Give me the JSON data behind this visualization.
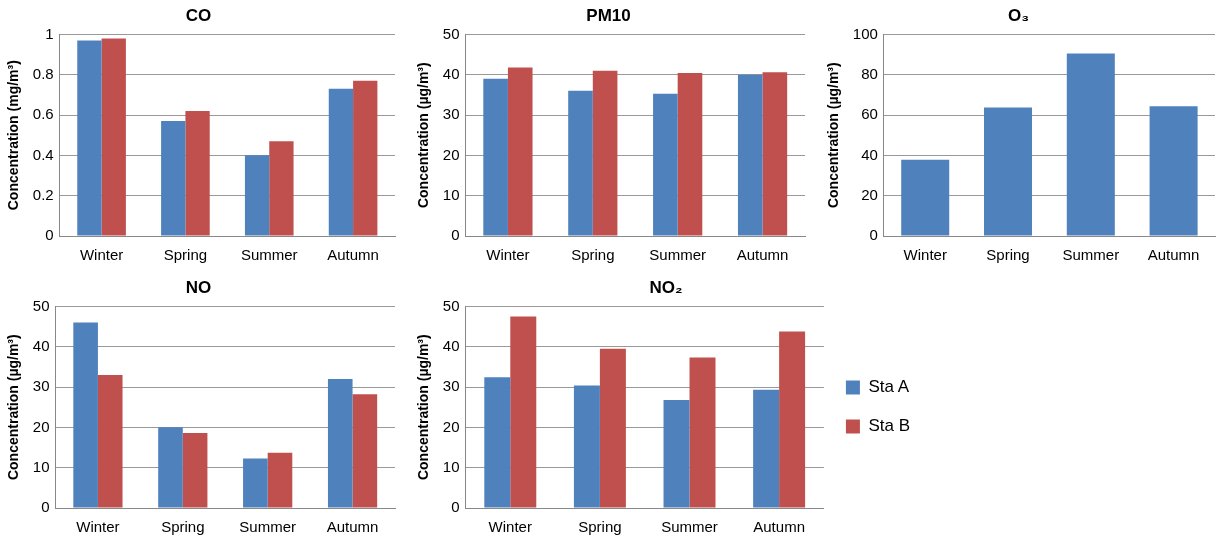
{
  "chart_data": [
    {
      "type": "bar",
      "title": "CO",
      "ylabel": "Concentration (mg/m³)",
      "categories": [
        "Winter",
        "Spring",
        "Summer",
        "Autumn"
      ],
      "series": [
        {
          "color": "#4f81bd",
          "values": [
            0.97,
            0.57,
            0.4,
            0.73
          ]
        },
        {
          "color": "#c0504d",
          "values": [
            0.98,
            0.62,
            0.47,
            0.77
          ]
        }
      ],
      "ylim": [
        0,
        1
      ],
      "yticks": [
        0,
        0.2,
        0.4,
        0.6,
        0.8,
        1
      ],
      "grid": "y",
      "legend": false
    },
    {
      "type": "bar",
      "title": "PM10",
      "ylabel": "Concentration (µg/m³)",
      "categories": [
        "Winter",
        "Spring",
        "Summer",
        "Autumn"
      ],
      "series": [
        {
          "color": "#4f81bd",
          "values": [
            39,
            36,
            35.3,
            40
          ]
        },
        {
          "color": "#c0504d",
          "values": [
            41.8,
            41,
            40.4,
            40.6
          ]
        }
      ],
      "ylim": [
        0,
        50
      ],
      "yticks": [
        0,
        10,
        20,
        30,
        40,
        50
      ],
      "grid": "y",
      "legend": false
    },
    {
      "type": "bar",
      "title": "O₃",
      "ylabel": "Concentration (µg/m³)",
      "categories": [
        "Winter",
        "Spring",
        "Summer",
        "Autumn"
      ],
      "series": [
        {
          "color": "#4f81bd",
          "values": [
            37.8,
            63.7,
            90.5,
            64.3
          ]
        }
      ],
      "ylim": [
        0,
        100
      ],
      "yticks": [
        0,
        20,
        40,
        60,
        80,
        100
      ],
      "grid": "y",
      "legend": false
    },
    {
      "type": "bar",
      "title": "NO",
      "ylabel": "Concentration (µg/m³)",
      "categories": [
        "Winter",
        "Spring",
        "Summer",
        "Autumn"
      ],
      "series": [
        {
          "color": "#4f81bd",
          "values": [
            46,
            20,
            12.3,
            32
          ]
        },
        {
          "color": "#c0504d",
          "values": [
            33,
            18.6,
            13.7,
            28.2
          ]
        }
      ],
      "ylim": [
        0,
        50
      ],
      "yticks": [
        0,
        10,
        20,
        30,
        40,
        50
      ],
      "grid": "y",
      "legend": false
    },
    {
      "type": "bar",
      "title": "NO₂",
      "ylabel": "Concentration (µg/m³)",
      "categories": [
        "Winter",
        "Spring",
        "Summer",
        "Autumn"
      ],
      "series": [
        {
          "name": "Sta A",
          "color": "#4f81bd",
          "values": [
            32.4,
            30.4,
            26.8,
            29.3
          ]
        },
        {
          "name": "Sta B",
          "color": "#c0504d",
          "values": [
            47.5,
            39.5,
            37.3,
            43.8
          ]
        }
      ],
      "ylim": [
        0,
        50
      ],
      "yticks": [
        0,
        10,
        20,
        30,
        40,
        50
      ],
      "grid": "y",
      "legend": "right"
    }
  ]
}
